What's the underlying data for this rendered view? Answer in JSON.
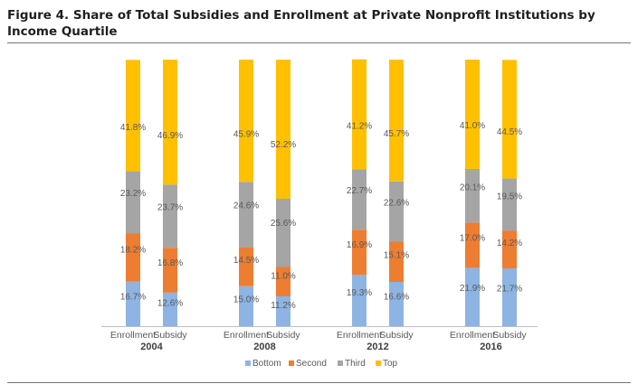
{
  "title": "Figure 4. Share of Total Subsidies and Enrollment at Private Nonprofit Institutions by Income Quartile",
  "chart_data": {
    "type": "bar",
    "stacked": true,
    "ylim": [
      0,
      100
    ],
    "grid": false,
    "legend": "bottom",
    "colors": {
      "Bottom": "#8db4e2",
      "Second": "#ed7d31",
      "Third": "#a5a5a5",
      "Top": "#ffc000"
    },
    "groups": [
      {
        "year": "2004",
        "bars": [
          {
            "label": "Enrollment",
            "values": [
              16.7,
              18.2,
              23.2,
              41.8
            ],
            "labels": [
              "16.7%",
              "18.2%",
              "23.2%",
              "41.8%"
            ]
          },
          {
            "label": "Subsidy",
            "values": [
              12.6,
              16.8,
              23.7,
              46.9
            ],
            "labels": [
              "12.6%",
              "16.8%",
              "23.7%",
              "46.9%"
            ]
          }
        ]
      },
      {
        "year": "2008",
        "bars": [
          {
            "label": "Enrollment",
            "values": [
              15.0,
              14.5,
              24.6,
              45.9
            ],
            "labels": [
              "15.0%",
              "14.5%",
              "24.6%",
              "45.9%"
            ]
          },
          {
            "label": "Subsidy",
            "values": [
              11.2,
              11.0,
              25.6,
              52.2
            ],
            "labels": [
              "11.2%",
              "11.0%",
              "25.6%",
              "52.2%"
            ]
          }
        ]
      },
      {
        "year": "2012",
        "bars": [
          {
            "label": "Enrollment",
            "values": [
              19.3,
              16.9,
              22.7,
              41.2
            ],
            "labels": [
              "19.3%",
              "16.9%",
              "22.7%",
              "41.2%"
            ]
          },
          {
            "label": "Subsidy",
            "values": [
              16.6,
              15.1,
              22.6,
              45.7
            ],
            "labels": [
              "16.6%",
              "15.1%",
              "22.6%",
              "45.7%"
            ]
          }
        ]
      },
      {
        "year": "2016",
        "bars": [
          {
            "label": "Enrollment",
            "values": [
              21.9,
              17.0,
              20.1,
              41.0
            ],
            "labels": [
              "21.9%",
              "17.0%",
              "20.1%",
              "41.0%"
            ]
          },
          {
            "label": "Subsidy",
            "values": [
              21.7,
              14.2,
              19.5,
              44.5
            ],
            "labels": [
              "21.7%",
              "14.2%",
              "19.5%",
              "44.5%"
            ]
          }
        ]
      }
    ],
    "series": [
      {
        "name": "Bottom"
      },
      {
        "name": "Second"
      },
      {
        "name": "Third"
      },
      {
        "name": "Top"
      }
    ]
  }
}
